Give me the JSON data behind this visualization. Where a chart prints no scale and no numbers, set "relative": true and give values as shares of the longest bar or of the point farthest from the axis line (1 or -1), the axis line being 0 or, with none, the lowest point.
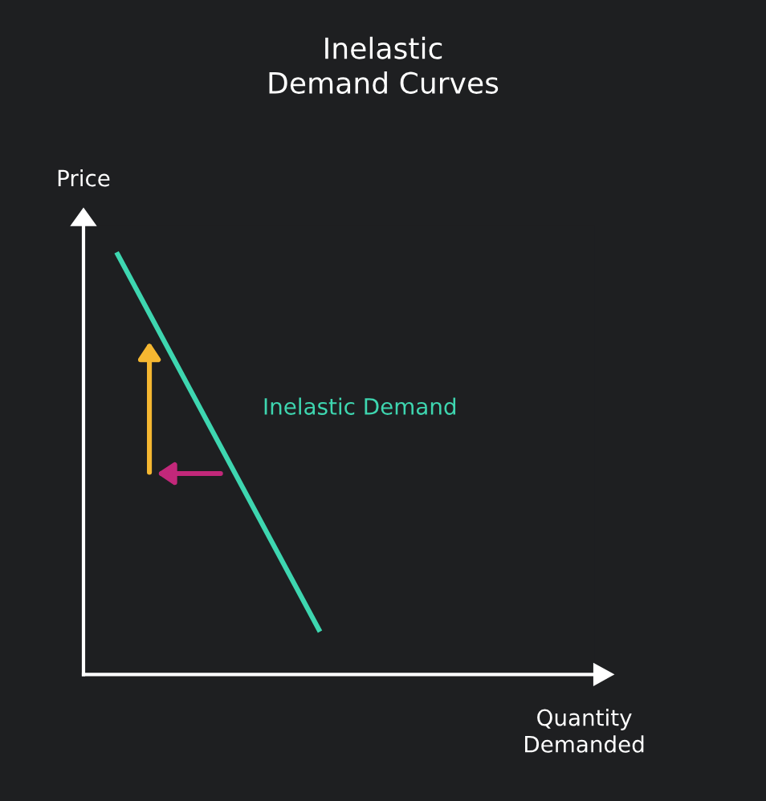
{
  "chart_data": {
    "type": "line",
    "title": "Inelastic\nDemand Curves",
    "xlabel": "Quantity\nDemanded",
    "ylabel": "Price",
    "relative": true,
    "categories": [
      null,
      null
    ],
    "series": [
      {
        "name": "Inelastic Demand",
        "color": "#3ed6b0",
        "values": [
          1,
          0.107
        ]
      }
    ],
    "legend": false,
    "marker": "none",
    "line_style": "solid"
  }
}
